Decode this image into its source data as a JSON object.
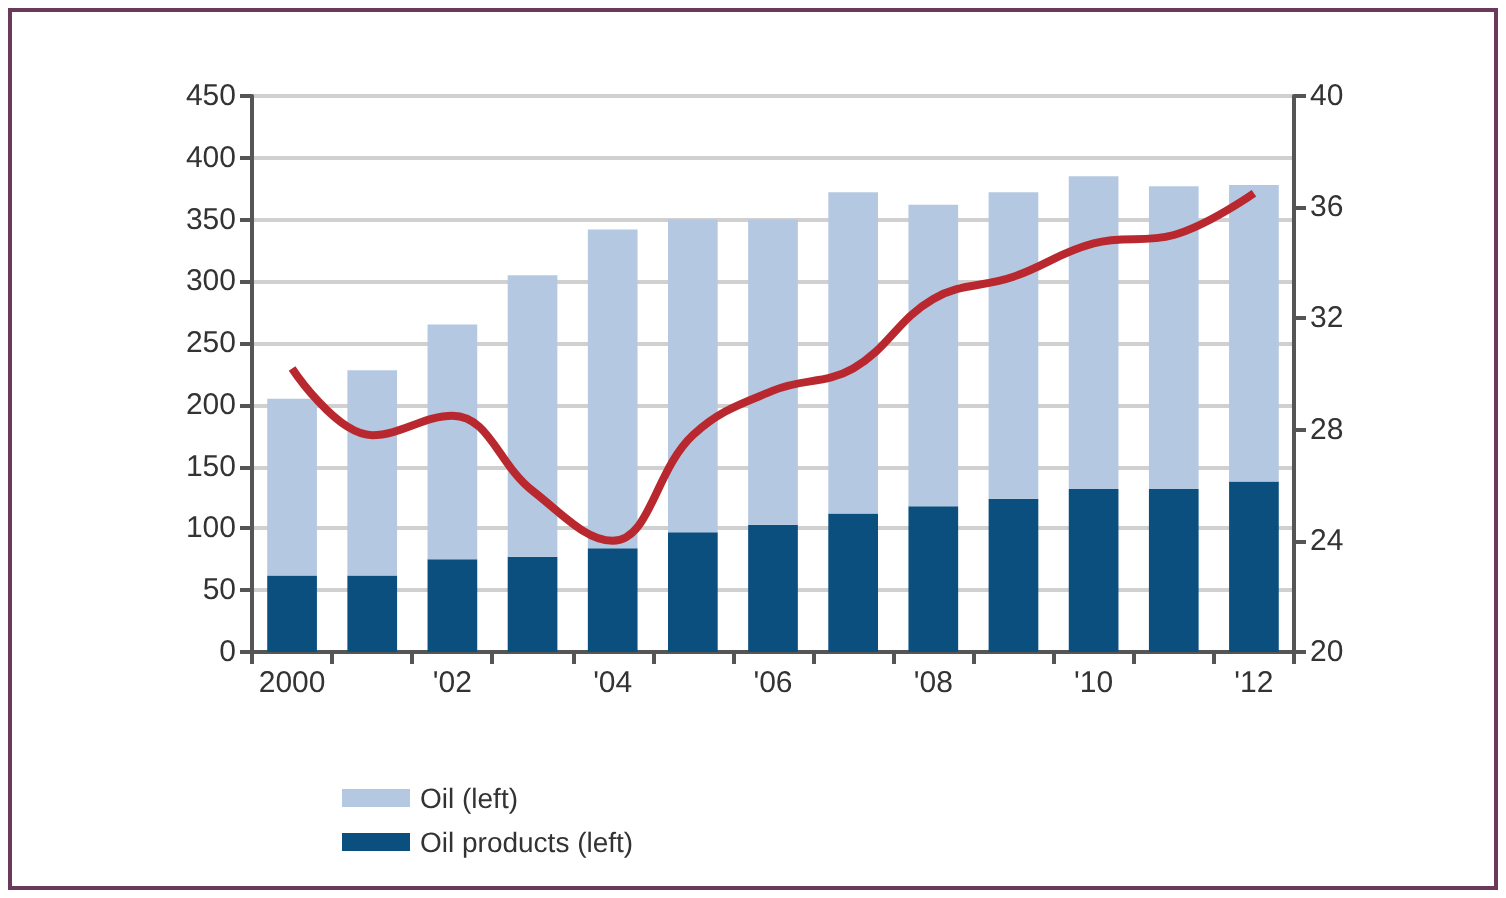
{
  "chart_data": {
    "type": "bar",
    "stacked": true,
    "categories": [
      "2000",
      null,
      "'02",
      null,
      "'04",
      null,
      "'06",
      null,
      "'08",
      null,
      "'10",
      null,
      "'12"
    ],
    "series": [
      {
        "name": "Oil products (left)",
        "color": "#0b4f7f",
        "values": [
          62,
          62,
          75,
          77,
          84,
          97,
          103,
          112,
          118,
          124,
          132,
          132,
          138
        ]
      },
      {
        "name": "Oil (left)",
        "color": "#b4c8e1",
        "values": [
          143,
          166,
          190,
          228,
          258,
          253,
          247,
          260,
          244,
          248,
          253,
          245,
          240
        ]
      },
      {
        "type": "line",
        "axis": "y2",
        "color": "#b8282e",
        "values": [
          30.2,
          27.8,
          28.5,
          25.8,
          24.0,
          27.8,
          29.4,
          30.2,
          32.7,
          33.5,
          34.7,
          35.0,
          36.5
        ]
      }
    ],
    "ylim": [
      0,
      450
    ],
    "yticks": [
      0,
      50,
      100,
      150,
      200,
      250,
      300,
      350,
      400,
      450
    ],
    "y2lim": [
      20,
      40
    ],
    "y2ticks": [
      20,
      24,
      28,
      32,
      36,
      40
    ],
    "grid": "y",
    "legend": "bottom left",
    "marker": "none"
  }
}
